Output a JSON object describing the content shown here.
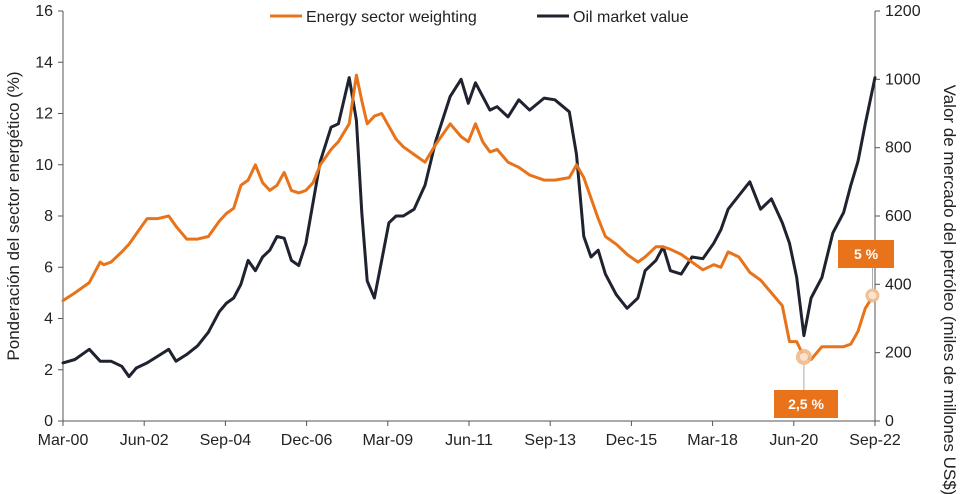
{
  "chart_data": {
    "type": "line",
    "colors": {
      "energy": "#e8731a",
      "oil": "#1f2330",
      "axis": "#555555",
      "badge": "#e8731a"
    },
    "x_ticks": [
      "Mar-00",
      "Jun-02",
      "Sep-04",
      "Dec-06",
      "Mar-09",
      "Jun-11",
      "Sep-13",
      "Dec-15",
      "Mar-18",
      "Jun-20",
      "Sep-22"
    ],
    "x_range": [
      2000.17,
      2022.67
    ],
    "y_left": {
      "label": "Ponderación del sector energético (%)",
      "min": 0,
      "max": 16,
      "ticks": [
        0,
        2,
        4,
        6,
        8,
        10,
        12,
        14,
        16
      ]
    },
    "y_right": {
      "label": "Valor de mercado del petróleo (miles de millones US$)",
      "min": 0,
      "max": 1200,
      "ticks": [
        0,
        200,
        400,
        600,
        800,
        1000,
        1200
      ]
    },
    "series": [
      {
        "name": "Energy sector weighting",
        "axis": "left",
        "x": [
          2000.17,
          2000.5,
          2000.9,
          2001.2,
          2001.3,
          2001.5,
          2001.8,
          2002.0,
          2002.2,
          2002.5,
          2002.8,
          2003.1,
          2003.3,
          2003.6,
          2003.9,
          2004.2,
          2004.5,
          2004.7,
          2004.9,
          2005.1,
          2005.3,
          2005.5,
          2005.7,
          2005.9,
          2006.1,
          2006.3,
          2006.5,
          2006.7,
          2006.9,
          2007.1,
          2007.3,
          2007.6,
          2007.8,
          2008.1,
          2008.3,
          2008.45,
          2008.6,
          2008.8,
          2009.0,
          2009.2,
          2009.4,
          2009.6,
          2009.9,
          2010.2,
          2010.5,
          2010.9,
          2011.2,
          2011.4,
          2011.6,
          2011.8,
          2012.0,
          2012.2,
          2012.5,
          2012.8,
          2013.1,
          2013.5,
          2013.8,
          2014.2,
          2014.4,
          2014.6,
          2014.8,
          2015.0,
          2015.2,
          2015.5,
          2015.8,
          2016.1,
          2016.3,
          2016.6,
          2016.8,
          2017.0,
          2017.3,
          2017.6,
          2017.9,
          2018.2,
          2018.4,
          2018.6,
          2018.9,
          2019.2,
          2019.5,
          2019.8,
          2020.1,
          2020.3,
          2020.5,
          2020.7,
          2020.9,
          2021.2,
          2021.5,
          2021.8,
          2022.0,
          2022.2,
          2022.4,
          2022.67
        ],
        "values": [
          4.7,
          5.0,
          5.4,
          6.2,
          6.1,
          6.2,
          6.6,
          6.9,
          7.3,
          7.9,
          7.9,
          8.0,
          7.6,
          7.1,
          7.1,
          7.2,
          7.8,
          8.1,
          8.3,
          9.2,
          9.4,
          10.0,
          9.3,
          9.0,
          9.2,
          9.7,
          9.0,
          8.9,
          9.0,
          9.3,
          10.0,
          10.6,
          10.9,
          11.6,
          13.5,
          12.5,
          11.6,
          11.9,
          12.0,
          11.5,
          11.0,
          10.7,
          10.4,
          10.1,
          10.8,
          11.6,
          11.1,
          10.9,
          11.6,
          10.9,
          10.5,
          10.6,
          10.1,
          9.9,
          9.6,
          9.4,
          9.4,
          9.5,
          10.0,
          9.5,
          8.7,
          7.9,
          7.2,
          6.9,
          6.5,
          6.2,
          6.4,
          6.8,
          6.8,
          6.7,
          6.5,
          6.2,
          5.9,
          6.1,
          6.0,
          6.6,
          6.4,
          5.8,
          5.5,
          5.0,
          4.5,
          3.1,
          3.1,
          2.5,
          2.4,
          2.9,
          2.9,
          2.9,
          3.0,
          3.5,
          4.4,
          5.0
        ]
      },
      {
        "name": "Oil market value",
        "axis": "right",
        "x": [
          2000.17,
          2000.5,
          2000.9,
          2001.2,
          2001.5,
          2001.8,
          2002.0,
          2002.2,
          2002.5,
          2002.8,
          2003.1,
          2003.3,
          2003.6,
          2003.9,
          2004.2,
          2004.5,
          2004.7,
          2004.9,
          2005.1,
          2005.3,
          2005.5,
          2005.7,
          2005.9,
          2006.1,
          2006.3,
          2006.5,
          2006.7,
          2006.9,
          2007.1,
          2007.3,
          2007.6,
          2007.8,
          2008.1,
          2008.3,
          2008.45,
          2008.6,
          2008.8,
          2009.0,
          2009.2,
          2009.4,
          2009.6,
          2009.9,
          2010.2,
          2010.5,
          2010.9,
          2011.2,
          2011.4,
          2011.6,
          2011.8,
          2012.0,
          2012.2,
          2012.5,
          2012.8,
          2013.1,
          2013.5,
          2013.8,
          2014.2,
          2014.4,
          2014.6,
          2014.8,
          2015.0,
          2015.2,
          2015.5,
          2015.8,
          2016.1,
          2016.3,
          2016.6,
          2016.8,
          2017.0,
          2017.3,
          2017.6,
          2017.9,
          2018.2,
          2018.4,
          2018.6,
          2018.9,
          2019.2,
          2019.5,
          2019.8,
          2020.1,
          2020.3,
          2020.5,
          2020.7,
          2020.9,
          2021.2,
          2021.5,
          2021.8,
          2022.0,
          2022.2,
          2022.4,
          2022.67
        ],
        "values": [
          170,
          180,
          210,
          175,
          175,
          160,
          130,
          155,
          170,
          190,
          210,
          175,
          195,
          220,
          260,
          320,
          345,
          360,
          400,
          470,
          440,
          480,
          500,
          540,
          535,
          470,
          455,
          520,
          640,
          760,
          860,
          870,
          1005,
          880,
          610,
          410,
          360,
          470,
          580,
          600,
          600,
          620,
          690,
          820,
          950,
          1000,
          930,
          990,
          950,
          910,
          920,
          890,
          940,
          910,
          945,
          940,
          905,
          780,
          540,
          480,
          500,
          430,
          370,
          330,
          360,
          440,
          470,
          510,
          440,
          430,
          480,
          475,
          520,
          560,
          620,
          660,
          700,
          620,
          650,
          580,
          520,
          420,
          250,
          360,
          420,
          550,
          610,
          690,
          760,
          870,
          1005
        ]
      }
    ],
    "annotations": [
      {
        "label": "5 %",
        "x": 2022.6,
        "y": 4.9,
        "axis": "left"
      },
      {
        "label": "2,5 %",
        "x": 2020.7,
        "y": 2.5,
        "axis": "left"
      }
    ],
    "legend": {
      "position": "top-center",
      "entries": [
        "Energy sector weighting",
        "Oil market value"
      ]
    },
    "grid": false
  }
}
